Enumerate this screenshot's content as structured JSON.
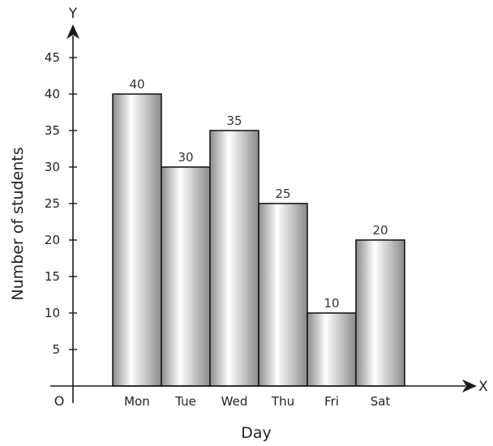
{
  "chart_data": {
    "type": "bar",
    "categories": [
      "Mon",
      "Tue",
      "Wed",
      "Thu",
      "Fri",
      "Sat"
    ],
    "values": [
      40,
      30,
      35,
      25,
      10,
      20
    ],
    "data_labels": [
      "40",
      "30",
      "35",
      "25",
      "10",
      "20"
    ],
    "xlabel": "Day",
    "ylabel": "Number of students",
    "x_axis_letter": "X",
    "y_axis_letter": "Y",
    "origin_label": "O",
    "yticks": [
      5,
      10,
      15,
      20,
      25,
      30,
      35,
      40,
      45
    ],
    "ylim": [
      0,
      45
    ],
    "grid": false,
    "bar_fill": [
      "#8a8a8a",
      "#ffffff"
    ]
  }
}
